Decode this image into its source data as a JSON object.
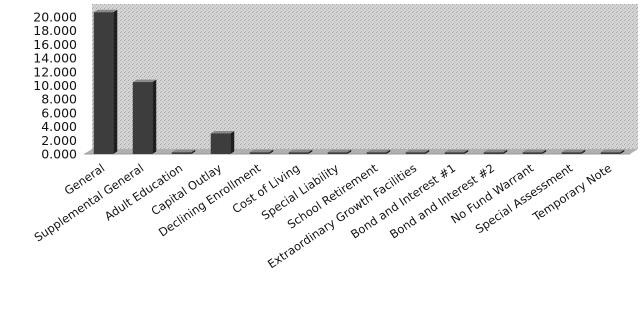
{
  "chart_data": {
    "type": "bar",
    "categories": [
      "General",
      "Supplemental General",
      "Adult Education",
      "Capital Outlay",
      "Declining Enrollment",
      "Cost of Living",
      "Special Liability",
      "School Retirement",
      "Extraordinary Growth Facilities",
      "Bond and Interest #1",
      "Bond and Interest #2",
      "No Fund Warrant",
      "Special Assessment",
      "Temporary Note"
    ],
    "values": [
      20.7,
      10.5,
      0,
      3.0,
      0,
      0,
      0,
      0,
      0,
      0,
      0,
      0,
      0,
      0
    ],
    "ylim": [
      0,
      20
    ],
    "yticks": [
      "0.000",
      "2.000",
      "4.000",
      "6.000",
      "8.000",
      "10.000",
      "12.000",
      "14.000",
      "16.000",
      "18.000",
      "20.000"
    ],
    "grid": false,
    "legend": "none",
    "colors": {
      "bar": "#3d3d3d",
      "bar_side": "#1f1f1f",
      "bar_top": "#8a8a8a",
      "wall": "#c9c9c9",
      "floor": "#b0b0b0"
    }
  }
}
